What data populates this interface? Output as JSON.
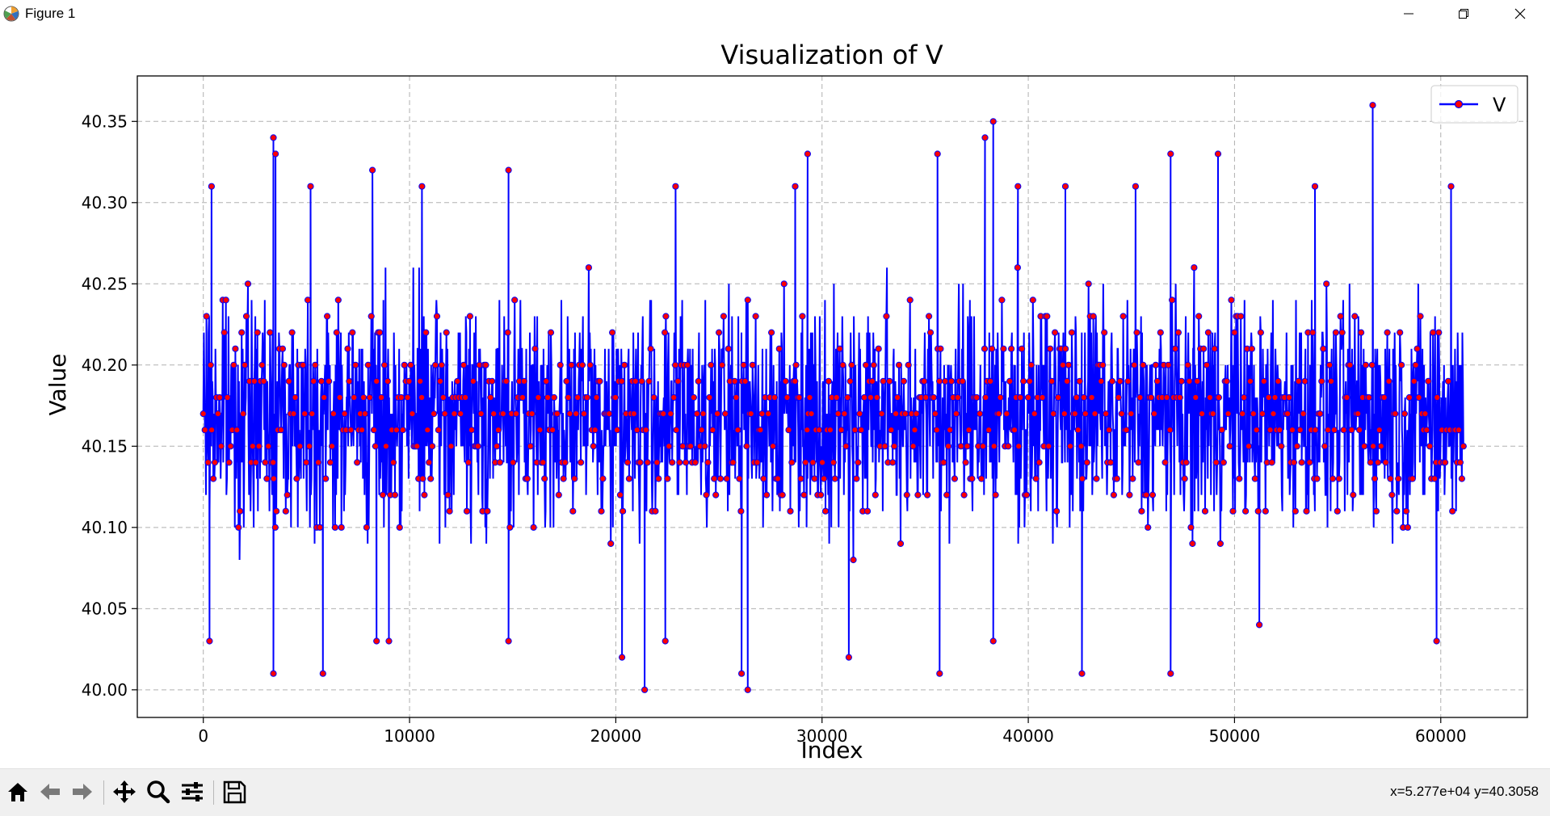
{
  "window": {
    "title": "Figure 1",
    "minimize_icon": "minimize-icon",
    "maximize_icon": "restore-icon",
    "close_icon": "close-icon"
  },
  "toolbar": {
    "tools": [
      "home-icon",
      "back-arrow-icon",
      "forward-arrow-icon",
      "pan-icon",
      "zoom-icon",
      "configure-subplots-icon",
      "save-icon"
    ],
    "coordinates": "x=5.277e+04 y=40.3058"
  },
  "chart_data": {
    "type": "line",
    "title": "Visualization of V",
    "xlabel": "Index",
    "ylabel": "Value",
    "xlim": [
      -3200,
      64200
    ],
    "ylim": [
      39.983,
      40.378
    ],
    "xticks": [
      0,
      10000,
      20000,
      30000,
      40000,
      50000,
      60000
    ],
    "xtick_labels": [
      "0",
      "10000",
      "20000",
      "30000",
      "40000",
      "50000",
      "60000"
    ],
    "yticks": [
      40.0,
      40.05,
      40.1,
      40.15,
      40.2,
      40.25,
      40.3,
      40.35
    ],
    "ytick_labels": [
      "40.00",
      "40.05",
      "40.10",
      "40.15",
      "40.20",
      "40.25",
      "40.30",
      "40.35"
    ],
    "grid": true,
    "legend_position": "top-right",
    "x_range": [
      0,
      61100
    ],
    "value_band": {
      "typical_low": 40.07,
      "typical_high": 40.27,
      "median": 40.17
    },
    "series": [
      {
        "name": "V",
        "line_color": "#0000ff",
        "marker_color": "#ff0000",
        "marker": "circle",
        "peaks": [
          {
            "x": 400,
            "y": 40.31
          },
          {
            "x": 3400,
            "y": 40.34
          },
          {
            "x": 3500,
            "y": 40.33
          },
          {
            "x": 8200,
            "y": 40.32
          },
          {
            "x": 14800,
            "y": 40.32
          },
          {
            "x": 29300,
            "y": 40.33
          },
          {
            "x": 35600,
            "y": 40.33
          },
          {
            "x": 37900,
            "y": 40.34
          },
          {
            "x": 38300,
            "y": 40.35
          },
          {
            "x": 46900,
            "y": 40.33
          },
          {
            "x": 49200,
            "y": 40.33
          },
          {
            "x": 56700,
            "y": 40.36
          },
          {
            "x": 60500,
            "y": 40.31
          },
          {
            "x": 5200,
            "y": 40.31
          },
          {
            "x": 10600,
            "y": 40.31
          },
          {
            "x": 22900,
            "y": 40.31
          },
          {
            "x": 28700,
            "y": 40.31
          },
          {
            "x": 39500,
            "y": 40.31
          },
          {
            "x": 41800,
            "y": 40.31
          },
          {
            "x": 45200,
            "y": 40.31
          },
          {
            "x": 53900,
            "y": 40.31
          }
        ],
        "troughs": [
          {
            "x": 300,
            "y": 40.03
          },
          {
            "x": 3400,
            "y": 40.01
          },
          {
            "x": 5800,
            "y": 40.01
          },
          {
            "x": 14800,
            "y": 40.03
          },
          {
            "x": 20300,
            "y": 40.02
          },
          {
            "x": 21400,
            "y": 40.0
          },
          {
            "x": 26100,
            "y": 40.01
          },
          {
            "x": 26400,
            "y": 40.0
          },
          {
            "x": 31300,
            "y": 40.02
          },
          {
            "x": 35700,
            "y": 40.01
          },
          {
            "x": 42600,
            "y": 40.01
          },
          {
            "x": 46900,
            "y": 40.01
          },
          {
            "x": 59800,
            "y": 40.03
          },
          {
            "x": 8400,
            "y": 40.03
          },
          {
            "x": 9000,
            "y": 40.03
          },
          {
            "x": 22400,
            "y": 40.03
          },
          {
            "x": 38300,
            "y": 40.03
          },
          {
            "x": 51200,
            "y": 40.04
          }
        ]
      }
    ]
  }
}
